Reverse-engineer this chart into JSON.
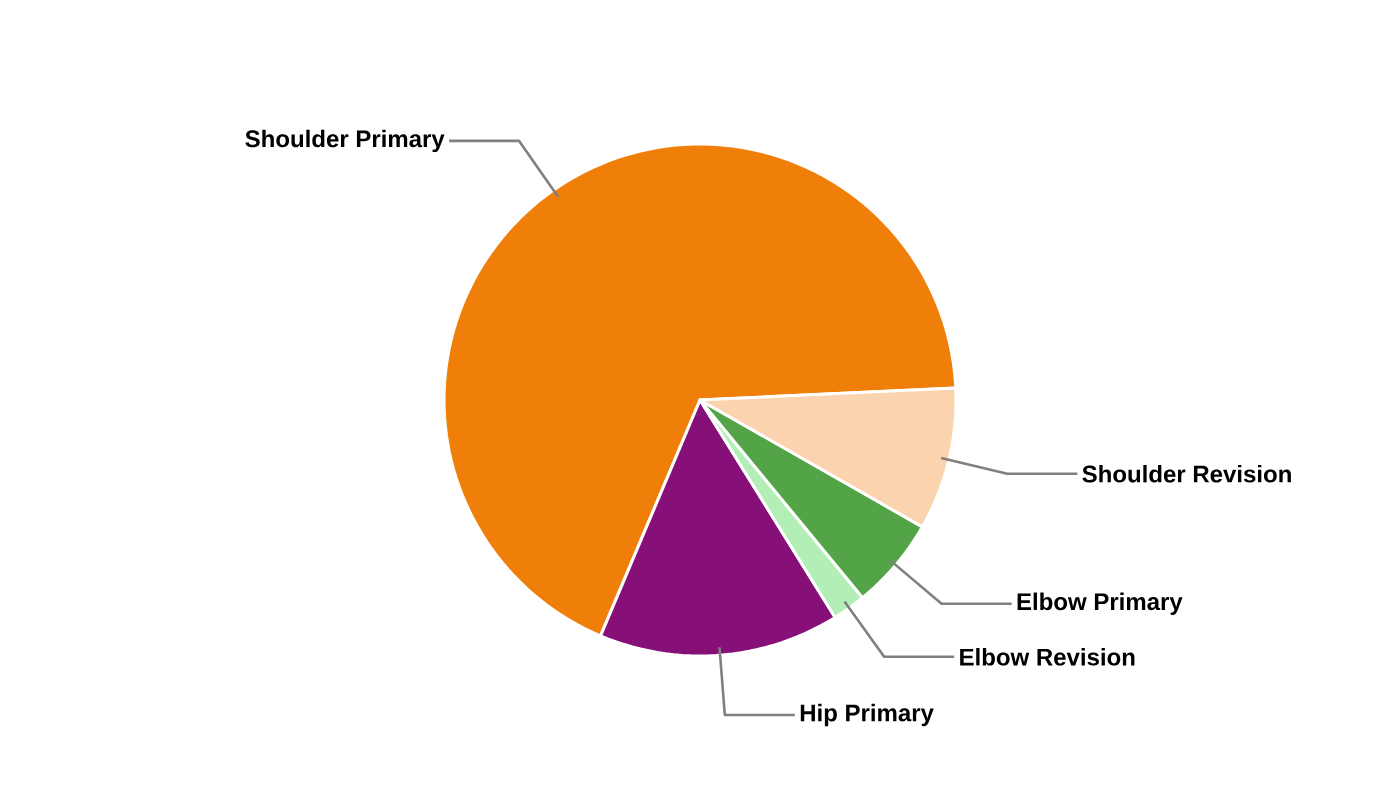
{
  "chart_data": {
    "type": "pie",
    "categories": [
      "Shoulder Primary",
      "Hip Primary",
      "Elbow Revision",
      "Elbow Primary",
      "Shoulder Revision"
    ],
    "values": [
      67.9,
      15.2,
      2.1,
      5.8,
      9.0
    ],
    "colors": [
      "#f07f09",
      "#861078",
      "#b3eeb7",
      "#53a447",
      "#fbd3ae"
    ]
  }
}
